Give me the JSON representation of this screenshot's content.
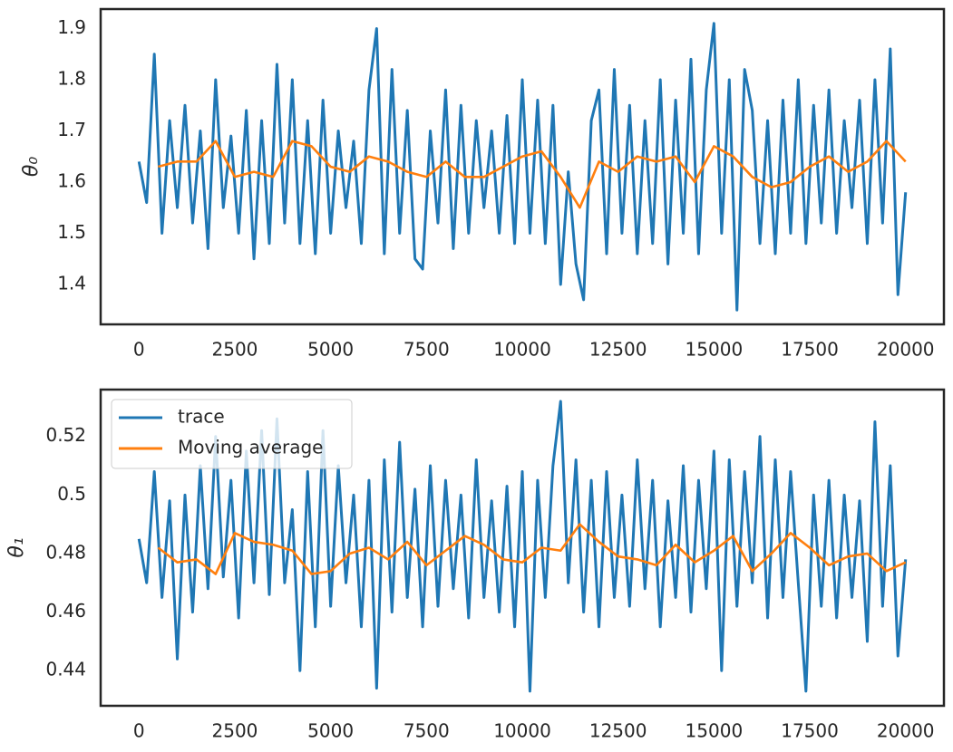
{
  "chart_data": [
    {
      "type": "line",
      "ylabel": "θ₀",
      "xlim": [
        -1000,
        21000
      ],
      "xticks": [
        0,
        2500,
        5000,
        7500,
        10000,
        12500,
        15000,
        17500,
        20000
      ],
      "ylim": [
        1.322,
        1.938
      ],
      "yticks": [
        1.4,
        1.5,
        1.6,
        1.7,
        1.8,
        1.9
      ],
      "series": [
        {
          "color": "#1f77b4",
          "x": [
            0,
            200,
            400,
            600,
            800,
            1000,
            1200,
            1400,
            1600,
            1800,
            2000,
            2200,
            2400,
            2600,
            2800,
            3000,
            3200,
            3400,
            3600,
            3800,
            4000,
            4200,
            4400,
            4600,
            4800,
            5000,
            5200,
            5400,
            5600,
            5800,
            6000,
            6200,
            6400,
            6600,
            6800,
            7000,
            7200,
            7400,
            7600,
            7800,
            8000,
            8200,
            8400,
            8600,
            8800,
            9000,
            9200,
            9400,
            9600,
            9800,
            10000,
            10200,
            10400,
            10600,
            10800,
            11000,
            11200,
            11400,
            11600,
            11800,
            12000,
            12200,
            12400,
            12600,
            12800,
            13000,
            13200,
            13400,
            13600,
            13800,
            14000,
            14200,
            14400,
            14600,
            14800,
            15000,
            15200,
            15400,
            15600,
            15800,
            16000,
            16200,
            16400,
            16600,
            16800,
            17000,
            17200,
            17400,
            17600,
            17800,
            18000,
            18200,
            18400,
            18600,
            18800,
            19000,
            19200,
            19400,
            19600,
            19800,
            20000
          ],
          "values": [
            1.64,
            1.56,
            1.85,
            1.5,
            1.72,
            1.55,
            1.75,
            1.52,
            1.7,
            1.47,
            1.8,
            1.55,
            1.69,
            1.5,
            1.74,
            1.45,
            1.72,
            1.48,
            1.83,
            1.52,
            1.8,
            1.48,
            1.72,
            1.46,
            1.76,
            1.5,
            1.7,
            1.55,
            1.68,
            1.48,
            1.78,
            1.9,
            1.46,
            1.82,
            1.5,
            1.74,
            1.45,
            1.43,
            1.7,
            1.52,
            1.78,
            1.47,
            1.75,
            1.5,
            1.72,
            1.55,
            1.7,
            1.5,
            1.73,
            1.48,
            1.8,
            1.5,
            1.76,
            1.48,
            1.75,
            1.4,
            1.62,
            1.44,
            1.37,
            1.72,
            1.78,
            1.46,
            1.82,
            1.5,
            1.75,
            1.46,
            1.72,
            1.48,
            1.8,
            1.44,
            1.76,
            1.5,
            1.84,
            1.46,
            1.78,
            1.91,
            1.5,
            1.8,
            1.35,
            1.82,
            1.74,
            1.48,
            1.72,
            1.46,
            1.76,
            1.5,
            1.8,
            1.48,
            1.75,
            1.52,
            1.78,
            1.5,
            1.72,
            1.55,
            1.76,
            1.48,
            1.8,
            1.52,
            1.86,
            1.38,
            1.58
          ]
        },
        {
          "color": "#ff7f0e",
          "x": [
            500,
            1000,
            1500,
            2000,
            2500,
            3000,
            3500,
            4000,
            4500,
            5000,
            5500,
            6000,
            6500,
            7000,
            7500,
            8000,
            8500,
            9000,
            9500,
            10000,
            10500,
            11000,
            11500,
            12000,
            12500,
            13000,
            13500,
            14000,
            14500,
            15000,
            15500,
            16000,
            16500,
            17000,
            17500,
            18000,
            18500,
            19000,
            19500,
            20000
          ],
          "values": [
            1.63,
            1.64,
            1.64,
            1.68,
            1.61,
            1.62,
            1.61,
            1.68,
            1.67,
            1.63,
            1.62,
            1.65,
            1.64,
            1.62,
            1.61,
            1.64,
            1.61,
            1.61,
            1.63,
            1.65,
            1.66,
            1.61,
            1.55,
            1.64,
            1.62,
            1.65,
            1.64,
            1.65,
            1.6,
            1.67,
            1.65,
            1.61,
            1.59,
            1.6,
            1.63,
            1.65,
            1.62,
            1.64,
            1.68,
            1.64
          ]
        }
      ]
    },
    {
      "type": "line",
      "ylabel": "θ₁",
      "legend": "upper left",
      "xlim": [
        -1000,
        21000
      ],
      "xticks": [
        0,
        2500,
        5000,
        7500,
        10000,
        12500,
        15000,
        17500,
        20000
      ],
      "ylim": [
        0.428,
        0.536
      ],
      "yticks": [
        0.44,
        0.46,
        0.48,
        0.5,
        {
          "value": 0.52,
          "label": "0.52"
        }
      ],
      "series": [
        {
          "name": "trace",
          "color": "#1f77b4",
          "x": [
            0,
            200,
            400,
            600,
            800,
            1000,
            1200,
            1400,
            1600,
            1800,
            2000,
            2200,
            2400,
            2600,
            2800,
            3000,
            3200,
            3400,
            3600,
            3800,
            4000,
            4200,
            4400,
            4600,
            4800,
            5000,
            5200,
            5400,
            5600,
            5800,
            6000,
            6200,
            6400,
            6600,
            6800,
            7000,
            7200,
            7400,
            7600,
            7800,
            8000,
            8200,
            8400,
            8600,
            8800,
            9000,
            9200,
            9400,
            9600,
            9800,
            10000,
            10200,
            10400,
            10600,
            10800,
            11000,
            11200,
            11400,
            11600,
            11800,
            12000,
            12200,
            12400,
            12600,
            12800,
            13000,
            13200,
            13400,
            13600,
            13800,
            14000,
            14200,
            14400,
            14600,
            14800,
            15000,
            15200,
            15400,
            15600,
            15800,
            16000,
            16200,
            16400,
            16600,
            16800,
            17000,
            17200,
            17400,
            17600,
            17800,
            18000,
            18200,
            18400,
            18600,
            18800,
            19000,
            19200,
            19400,
            19600,
            19800,
            20000
          ],
          "values": [
            0.485,
            0.47,
            0.508,
            0.465,
            0.498,
            0.444,
            0.5,
            0.46,
            0.51,
            0.468,
            0.52,
            0.472,
            0.505,
            0.458,
            0.515,
            0.47,
            0.522,
            0.466,
            0.526,
            0.47,
            0.495,
            0.44,
            0.508,
            0.455,
            0.522,
            0.462,
            0.51,
            0.47,
            0.5,
            0.455,
            0.505,
            0.434,
            0.512,
            0.46,
            0.518,
            0.465,
            0.502,
            0.455,
            0.51,
            0.462,
            0.505,
            0.468,
            0.5,
            0.458,
            0.512,
            0.465,
            0.498,
            0.46,
            0.503,
            0.455,
            0.508,
            0.433,
            0.505,
            0.465,
            0.51,
            0.532,
            0.47,
            0.512,
            0.46,
            0.505,
            0.455,
            0.508,
            0.465,
            0.5,
            0.462,
            0.512,
            0.468,
            0.505,
            0.455,
            0.498,
            0.465,
            0.51,
            0.46,
            0.505,
            0.468,
            0.515,
            0.44,
            0.512,
            0.462,
            0.508,
            0.47,
            0.52,
            0.458,
            0.512,
            0.465,
            0.508,
            0.47,
            0.433,
            0.5,
            0.462,
            0.505,
            0.458,
            0.5,
            0.465,
            0.498,
            0.45,
            0.525,
            0.462,
            0.51,
            0.445,
            0.478
          ]
        },
        {
          "name": "Moving average",
          "color": "#ff7f0e",
          "x": [
            500,
            1000,
            1500,
            2000,
            2500,
            3000,
            3500,
            4000,
            4500,
            5000,
            5500,
            6000,
            6500,
            7000,
            7500,
            8000,
            8500,
            9000,
            9500,
            10000,
            10500,
            11000,
            11500,
            12000,
            12500,
            13000,
            13500,
            14000,
            14500,
            15000,
            15500,
            16000,
            16500,
            17000,
            17500,
            18000,
            18500,
            19000,
            19500,
            20000
          ],
          "values": [
            0.482,
            0.477,
            0.478,
            0.473,
            0.487,
            0.484,
            0.483,
            0.481,
            0.473,
            0.474,
            0.48,
            0.482,
            0.478,
            0.484,
            0.476,
            0.481,
            0.486,
            0.483,
            0.478,
            0.477,
            0.482,
            0.481,
            0.49,
            0.484,
            0.479,
            0.478,
            0.476,
            0.483,
            0.477,
            0.481,
            0.486,
            0.474,
            0.48,
            0.487,
            0.482,
            0.476,
            0.479,
            0.48,
            0.474,
            0.477
          ]
        }
      ]
    }
  ]
}
